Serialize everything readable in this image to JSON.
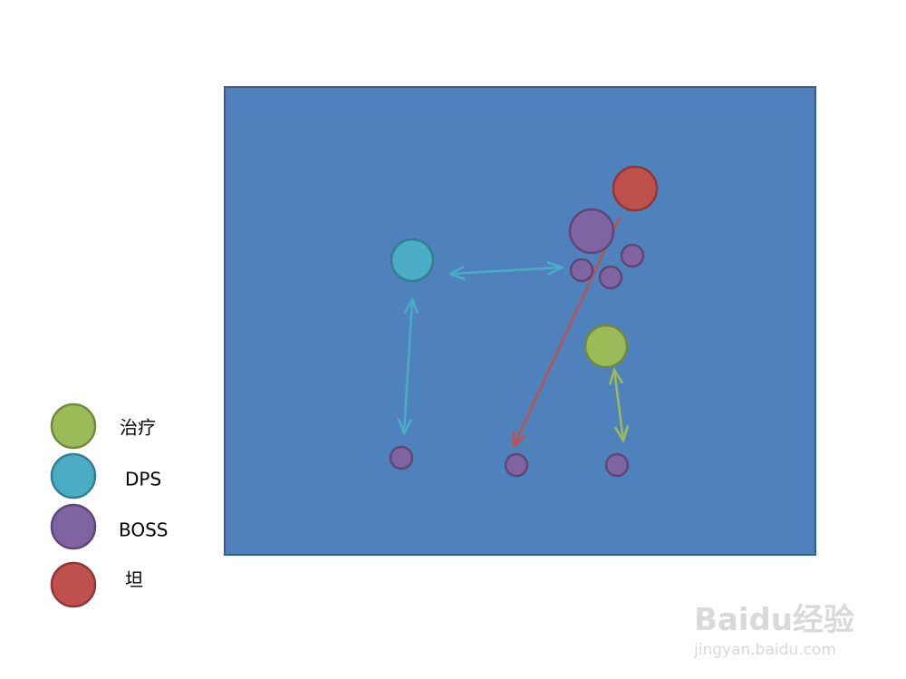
{
  "legend": [
    {
      "label": "治疗"
    },
    {
      "label": "DPS"
    },
    {
      "label": "BOSS"
    },
    {
      "label": "坦"
    }
  ],
  "watermark": {
    "brand": "Baidu经验",
    "url": "jingyan.baidu.com"
  }
}
